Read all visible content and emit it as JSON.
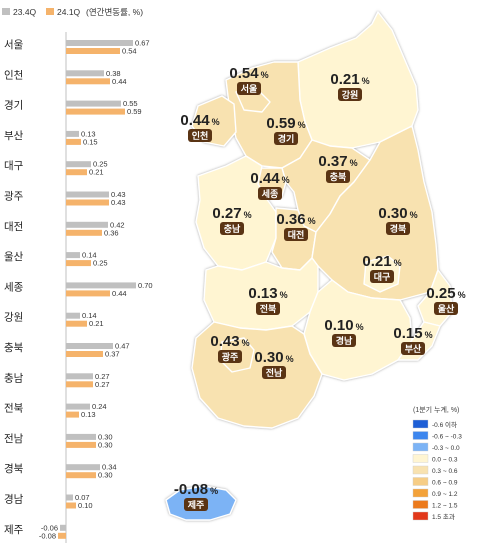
{
  "chart_data": {
    "type": "bar",
    "legend": {
      "series1": "23.4Q",
      "series2": "24.1Q",
      "note": "(연간변동률, %)"
    },
    "colors": {
      "series1": "#c0c0c0",
      "series2": "#f5b36b"
    },
    "categories": [
      "서울",
      "인천",
      "경기",
      "부산",
      "대구",
      "광주",
      "대전",
      "울산",
      "세종",
      "강원",
      "충북",
      "충남",
      "전북",
      "전남",
      "경북",
      "경남",
      "제주"
    ],
    "series": [
      {
        "name": "23.4Q",
        "values": [
          0.67,
          0.38,
          0.55,
          0.13,
          0.25,
          0.43,
          0.42,
          0.14,
          0.7,
          0.14,
          0.47,
          0.27,
          0.24,
          0.3,
          0.34,
          0.07,
          -0.06
        ]
      },
      {
        "name": "24.1Q",
        "values": [
          0.54,
          0.44,
          0.59,
          0.15,
          0.21,
          0.43,
          0.36,
          0.25,
          0.44,
          0.21,
          0.37,
          0.27,
          0.13,
          0.3,
          0.3,
          0.1,
          -0.08
        ]
      }
    ],
    "value_labels": {
      "23.4Q": [
        "0.67",
        "0.38",
        "0.55",
        "0.13",
        "0.25",
        "0.43",
        "0.42",
        "0.14",
        "0.70",
        "0.14",
        "0.47",
        "0.27",
        "0.24",
        "0.30",
        "0.34",
        "0.07",
        "-0.06"
      ],
      "24.1Q": [
        "0.54",
        "0.44",
        "0.59",
        "0.15",
        "0.21",
        "0.43",
        "0.36",
        "0.25",
        "0.44",
        "0.21",
        "0.37",
        "0.27",
        "0.13",
        "0.30",
        "0.30",
        "0.10",
        "-0.08"
      ]
    },
    "map": {
      "regions": [
        {
          "name": "서울",
          "value": "0.54"
        },
        {
          "name": "강원",
          "value": "0.21"
        },
        {
          "name": "인천",
          "value": "0.44"
        },
        {
          "name": "경기",
          "value": "0.59"
        },
        {
          "name": "충북",
          "value": "0.37"
        },
        {
          "name": "세종",
          "value": "0.44"
        },
        {
          "name": "충남",
          "value": "0.27"
        },
        {
          "name": "대전",
          "value": "0.36"
        },
        {
          "name": "경북",
          "value": "0.30"
        },
        {
          "name": "대구",
          "value": "0.21"
        },
        {
          "name": "전북",
          "value": "0.13"
        },
        {
          "name": "울산",
          "value": "0.25"
        },
        {
          "name": "경남",
          "value": "0.10"
        },
        {
          "name": "부산",
          "value": "0.15"
        },
        {
          "name": "광주",
          "value": "0.43"
        },
        {
          "name": "전남",
          "value": "0.30"
        },
        {
          "name": "제주",
          "value": "-0.08"
        }
      ],
      "unit": "%",
      "legend_title": "(1분기 누계, %)",
      "legend_items": [
        {
          "label": "-0.6 이하",
          "color": "#1e5fd6"
        },
        {
          "label": "-0.6 ~ -0.3",
          "color": "#3d86ee"
        },
        {
          "label": "-0.3 ~ 0.0",
          "color": "#7cb3f5"
        },
        {
          "label": "0.0 ~ 0.3",
          "color": "#fff5d2"
        },
        {
          "label": "0.3 ~ 0.6",
          "color": "#f8e2b0"
        },
        {
          "label": "0.6 ~ 0.9",
          "color": "#f6cd86"
        },
        {
          "label": "0.9 ~ 1.2",
          "color": "#f3a23a"
        },
        {
          "label": "1.2 ~ 1.5",
          "color": "#ec7a1c"
        },
        {
          "label": "1.5 초과",
          "color": "#e2381a"
        }
      ],
      "colors": {
        "low": "#fff5d2",
        "mid": "#f8e2b0",
        "negative": "#7cb3f5",
        "badge": "#5a3414",
        "border": "#ffffff",
        "outline": "#a8a8a8"
      }
    }
  }
}
